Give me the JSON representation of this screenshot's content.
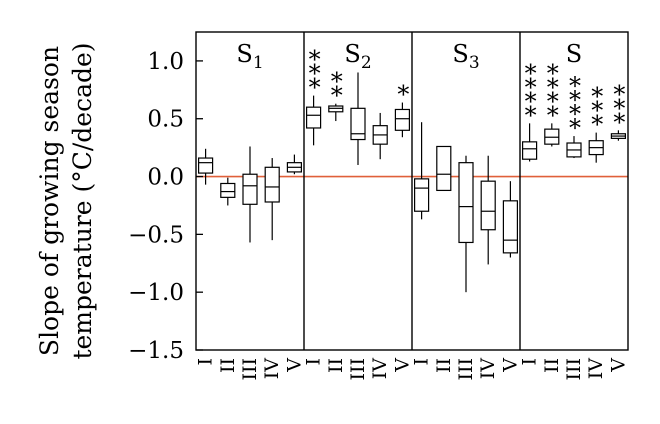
{
  "chart_data": {
    "type": "box",
    "ylabel": [
      "Slope of growing season",
      "temperature (°C/decade)"
    ],
    "ylim": [
      -1.5,
      1.25
    ],
    "yticks": [
      "1.0",
      "0.5",
      "0.0",
      "−0.5",
      "−1.0",
      "−1.5"
    ],
    "ytick_values": [
      1.0,
      0.5,
      0.0,
      -0.5,
      -1.0,
      -1.5
    ],
    "reference_line": {
      "y": 0,
      "color": "#e0603a"
    },
    "categories": [
      "I",
      "II",
      "III",
      "IV",
      "V"
    ],
    "panels": [
      {
        "title": "S",
        "subscript": "1",
        "boxes": [
          {
            "min": -0.07,
            "q1": 0.03,
            "median": 0.12,
            "q3": 0.16,
            "max": 0.24,
            "sig": ""
          },
          {
            "min": -0.25,
            "q1": -0.18,
            "median": -0.13,
            "q3": -0.06,
            "max": -0.01,
            "sig": ""
          },
          {
            "min": -0.57,
            "q1": -0.24,
            "median": -0.08,
            "q3": 0.02,
            "max": 0.26,
            "sig": ""
          },
          {
            "min": -0.55,
            "q1": -0.22,
            "median": -0.09,
            "q3": 0.08,
            "max": 0.16,
            "sig": ""
          },
          {
            "min": 0.02,
            "q1": 0.04,
            "median": 0.08,
            "q3": 0.12,
            "max": 0.19,
            "sig": ""
          }
        ]
      },
      {
        "title": "S",
        "subscript": "2",
        "boxes": [
          {
            "min": 0.27,
            "q1": 0.42,
            "median": 0.53,
            "q3": 0.6,
            "max": 0.7,
            "sig": "***"
          },
          {
            "min": 0.48,
            "q1": 0.56,
            "median": 0.59,
            "q3": 0.61,
            "max": 0.63,
            "sig": "**"
          },
          {
            "min": 0.1,
            "q1": 0.32,
            "median": 0.37,
            "q3": 0.59,
            "max": 0.9,
            "sig": ""
          },
          {
            "min": 0.15,
            "q1": 0.28,
            "median": 0.36,
            "q3": 0.44,
            "max": 0.55,
            "sig": ""
          },
          {
            "min": 0.34,
            "q1": 0.4,
            "median": 0.5,
            "q3": 0.58,
            "max": 0.64,
            "sig": "*"
          }
        ]
      },
      {
        "title": "S",
        "subscript": "3",
        "boxes": [
          {
            "min": -0.37,
            "q1": -0.3,
            "median": -0.1,
            "q3": -0.02,
            "max": 0.47,
            "sig": ""
          },
          {
            "min": -0.12,
            "q1": -0.12,
            "median": 0.02,
            "q3": 0.26,
            "max": 0.26,
            "sig": ""
          },
          {
            "min": -1.0,
            "q1": -0.57,
            "median": -0.26,
            "q3": 0.12,
            "max": 0.18,
            "sig": ""
          },
          {
            "min": -0.76,
            "q1": -0.46,
            "median": -0.3,
            "q3": -0.04,
            "max": 0.18,
            "sig": ""
          },
          {
            "min": -0.7,
            "q1": -0.66,
            "median": -0.55,
            "q3": -0.21,
            "max": -0.04,
            "sig": ""
          }
        ]
      },
      {
        "title": "S",
        "subscript": "",
        "boxes": [
          {
            "min": 0.13,
            "q1": 0.15,
            "median": 0.24,
            "q3": 0.3,
            "max": 0.46,
            "sig": "****"
          },
          {
            "min": 0.26,
            "q1": 0.28,
            "median": 0.34,
            "q3": 0.41,
            "max": 0.46,
            "sig": "****"
          },
          {
            "min": 0.16,
            "q1": 0.17,
            "median": 0.23,
            "q3": 0.29,
            "max": 0.35,
            "sig": "****"
          },
          {
            "min": 0.12,
            "q1": 0.19,
            "median": 0.25,
            "q3": 0.31,
            "max": 0.38,
            "sig": "***"
          },
          {
            "min": 0.31,
            "q1": 0.33,
            "median": 0.35,
            "q3": 0.37,
            "max": 0.4,
            "sig": "***"
          }
        ]
      }
    ]
  }
}
